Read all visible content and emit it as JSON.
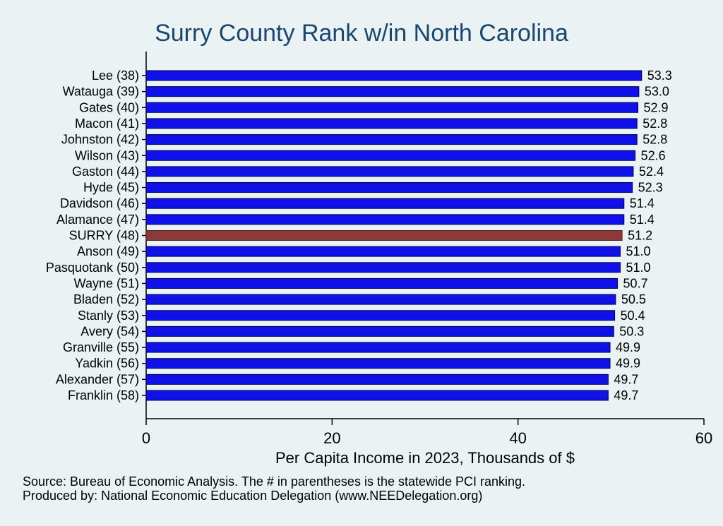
{
  "chart_data": {
    "type": "bar",
    "orientation": "horizontal",
    "title": "Surry County Rank w/in North Carolina",
    "xlabel": "Per Capita Income in 2023, Thousands of $",
    "ylabel": "",
    "xlim": [
      0,
      60
    ],
    "xticks": [
      "0",
      "20",
      "40",
      "60"
    ],
    "grid": false,
    "categories": [
      "Lee (38)",
      "Watauga (39)",
      "Gates (40)",
      "Macon (41)",
      "Johnston (42)",
      "Wilson (43)",
      "Gaston (44)",
      "Hyde (45)",
      "Davidson (46)",
      "Alamance (47)",
      "SURRY (48)",
      "Anson (49)",
      "Pasquotank (50)",
      "Wayne (51)",
      "Bladen (52)",
      "Stanly (53)",
      "Avery (54)",
      "Granville (55)",
      "Yadkin (56)",
      "Alexander (57)",
      "Franklin (58)"
    ],
    "values": [
      53.3,
      53.0,
      52.9,
      52.8,
      52.8,
      52.6,
      52.4,
      52.3,
      51.4,
      51.4,
      51.2,
      51.0,
      51.0,
      50.7,
      50.5,
      50.4,
      50.3,
      49.9,
      49.9,
      49.7,
      49.7
    ],
    "value_labels": [
      "53.3",
      "53.0",
      "52.9",
      "52.8",
      "52.8",
      "52.6",
      "52.4",
      "52.3",
      "51.4",
      "51.4",
      "51.2",
      "51.0",
      "51.0",
      "50.7",
      "50.5",
      "50.4",
      "50.3",
      "49.9",
      "49.9",
      "49.7",
      "49.7"
    ],
    "highlight_category": "SURRY (48)",
    "colors": {
      "bar": "#1010e8",
      "highlight": "#8b3a3a",
      "axis": "#000000",
      "title": "#1a476f"
    }
  },
  "notes": {
    "source": "Source: Bureau of Economic Analysis. The # in parentheses is the statewide PCI ranking.",
    "produced": "Produced by: National Economic Education Delegation (www.NEEDelegation.org)"
  }
}
